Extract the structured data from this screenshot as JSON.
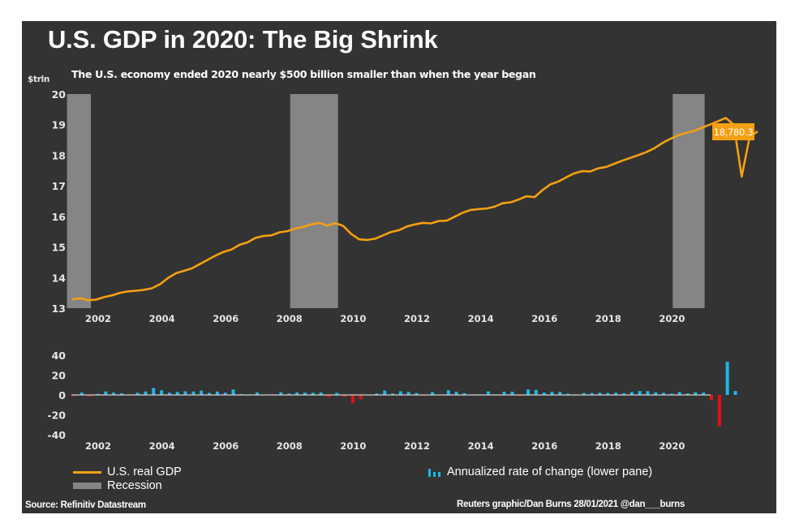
{
  "header": {
    "title": "U.S. GDP in 2020: The Big Shrink",
    "subtitle": "The U.S. economy ended 2020 nearly $500 billion smaller than when the year began",
    "unit_label": "$trln"
  },
  "legend": {
    "gdp_label": "U.S. real GDP",
    "recession_label": "Recession",
    "rate_label": "Annualized rate of change (lower pane)"
  },
  "footer": {
    "source": "Source: Refinitiv Datastream",
    "credit": "Reuters graphic/Dan Burns 28/01/2021 @dan___burns"
  },
  "colors": {
    "background": "#333333",
    "gdp_line": "#f5a012",
    "recession": "#858585",
    "positive_bar": "#1bb8e8",
    "negative_bar": "#e81010",
    "zero_line": "#d0d0d0"
  },
  "chart_data": [
    {
      "type": "line",
      "name": "upper-pane",
      "title": "U.S. GDP in 2020: The Big Shrink",
      "ylabel": "$trln",
      "ylim": [
        13,
        20
      ],
      "yticks": [
        "13",
        "14",
        "15",
        "16",
        "17",
        "18",
        "19",
        "20"
      ],
      "xlim": [
        2001.0,
        2021.0
      ],
      "xticks": [
        "2002",
        "2004",
        "2006",
        "2008",
        "2010",
        "2012",
        "2014",
        "2016",
        "2018",
        "2020"
      ],
      "grid": false,
      "last_value_label": "18,780.3",
      "recessions": [
        {
          "start": 2001.0,
          "end": 2001.75
        },
        {
          "start": 2008.0,
          "end": 2009.5
        },
        {
          "start": 2020.0,
          "end": 2021.0
        }
      ],
      "series": [
        {
          "name": "U.S. real GDP",
          "x_start": 2001.0,
          "x_step": 0.25,
          "values": [
            13.28,
            13.33,
            13.26,
            13.28,
            13.36,
            13.42,
            13.5,
            13.55,
            13.57,
            13.6,
            13.65,
            13.78,
            13.98,
            14.14,
            14.22,
            14.3,
            14.44,
            14.58,
            14.72,
            14.84,
            14.92,
            15.07,
            15.15,
            15.3,
            15.36,
            15.38,
            15.48,
            15.52,
            15.6,
            15.66,
            15.74,
            15.79,
            15.7,
            15.78,
            15.69,
            15.43,
            15.25,
            15.23,
            15.27,
            15.38,
            15.49,
            15.55,
            15.67,
            15.74,
            15.79,
            15.77,
            15.85,
            15.86,
            15.99,
            16.12,
            16.21,
            16.24,
            16.26,
            16.32,
            16.43,
            16.46,
            16.55,
            16.66,
            16.63,
            16.86,
            17.05,
            17.14,
            17.28,
            17.41,
            17.48,
            17.47,
            17.57,
            17.62,
            17.72,
            17.82,
            17.91,
            18.0,
            18.1,
            18.22,
            18.39,
            18.53,
            18.65,
            18.73,
            18.79,
            18.9,
            19.0,
            19.11,
            19.22,
            19.0,
            17.3,
            18.6,
            18.78
          ]
        }
      ]
    },
    {
      "type": "bar",
      "name": "lower-pane",
      "ylabel": "",
      "ylim": [
        -40,
        40
      ],
      "yticks": [
        "40",
        "20",
        "0",
        "-20",
        "-40"
      ],
      "xlim": [
        2001.0,
        2021.0
      ],
      "xticks": [
        "2002",
        "2004",
        "2006",
        "2008",
        "2010",
        "2012",
        "2014",
        "2016",
        "2018",
        "2020"
      ],
      "grid": false,
      "series": [
        {
          "name": "Annualized rate of change (lower pane)",
          "x_start": 2001.0,
          "x_step": 0.25,
          "values": [
            -1.1,
            2.4,
            -1.6,
            1.1,
            3.5,
            2.4,
            1.7,
            0.2,
            2.2,
            3.5,
            7.0,
            4.7,
            2.3,
            3.0,
            3.7,
            3.5,
            4.3,
            2.1,
            3.4,
            2.3,
            5.5,
            0.9,
            0.6,
            2.5,
            0.3,
            0.1,
            2.7,
            1.4,
            2.5,
            2.3,
            2.2,
            2.5,
            -2.3,
            2.1,
            -2.1,
            -8.4,
            -4.4,
            -0.6,
            1.5,
            4.5,
            1.5,
            3.7,
            3.0,
            2.0,
            -1.0,
            2.9,
            -0.1,
            4.7,
            3.2,
            1.7,
            0.5,
            0.5,
            3.6,
            0.5,
            3.2,
            3.2,
            -1.1,
            5.5,
            5.0,
            2.3,
            3.2,
            3.0,
            1.3,
            0.1,
            2.0,
            1.9,
            2.2,
            2.0,
            2.3,
            1.7,
            2.9,
            3.9,
            3.8,
            2.7,
            2.1,
            1.3,
            2.9,
            1.5,
            2.6,
            2.4,
            -5.0,
            -31.4,
            33.4,
            4.0
          ]
        }
      ]
    }
  ]
}
